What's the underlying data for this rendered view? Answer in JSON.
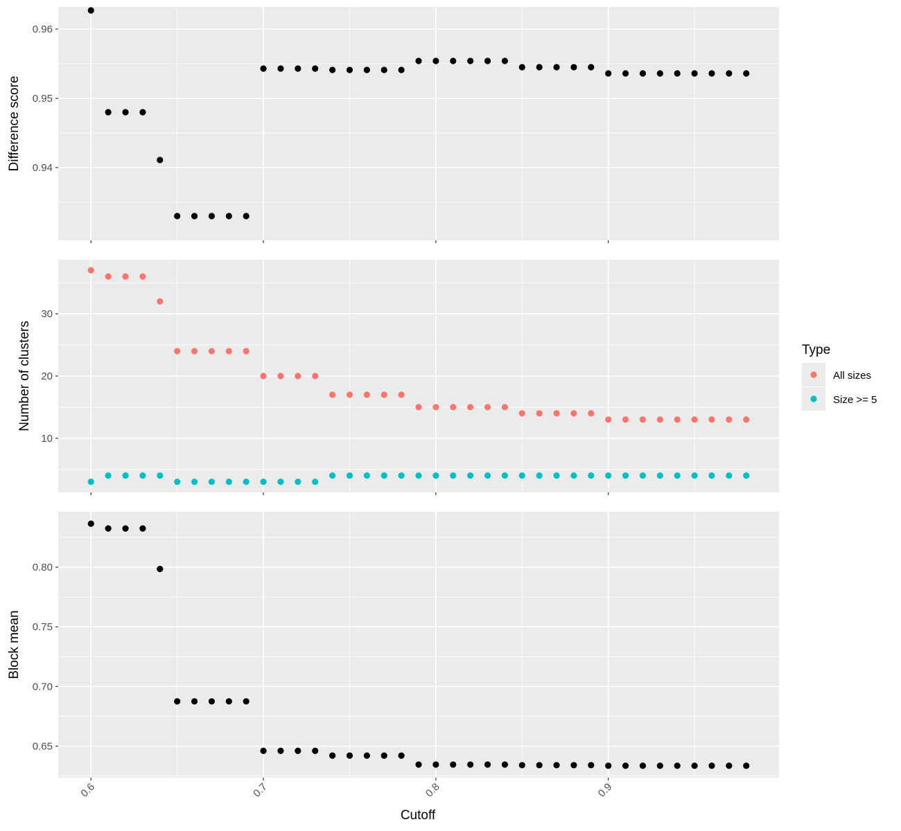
{
  "chart_data": {
    "type": "scatter",
    "x_label": "Cutoff",
    "x_range": [
      0.581,
      0.999
    ],
    "x_ticks": [
      0.6,
      0.7,
      0.8,
      0.9
    ],
    "x_tick_labels": [
      "0.6",
      "0.7",
      "0.8",
      "0.9"
    ],
    "x": [
      0.6,
      0.61,
      0.62,
      0.63,
      0.64,
      0.65,
      0.66,
      0.67,
      0.68,
      0.69,
      0.7,
      0.71,
      0.72,
      0.73,
      0.74,
      0.75,
      0.76,
      0.77,
      0.78,
      0.79,
      0.8,
      0.81,
      0.82,
      0.83,
      0.84,
      0.85,
      0.86,
      0.87,
      0.88,
      0.89,
      0.9,
      0.91,
      0.92,
      0.93,
      0.94,
      0.95,
      0.96,
      0.97,
      0.98
    ],
    "grid": true,
    "legend": {
      "title": "Type",
      "position": "right",
      "entries": [
        {
          "label": "All sizes",
          "color": "#F8766D"
        },
        {
          "label": "Size >= 5",
          "color": "#00BFC4"
        }
      ]
    },
    "panels": [
      {
        "id": "difference",
        "ylabel": "Difference score",
        "ylim": [
          0.9295,
          0.9632
        ],
        "y_ticks": [
          0.94,
          0.95,
          0.96
        ],
        "y_tick_labels": [
          "0.94",
          "0.95",
          "0.96"
        ],
        "series": [
          {
            "color": "#000000",
            "values": [
              0.9627,
              0.948,
              0.948,
              0.948,
              0.9411,
              0.933,
              0.933,
              0.933,
              0.933,
              0.933,
              0.9543,
              0.9543,
              0.9543,
              0.9543,
              0.9541,
              0.9541,
              0.9541,
              0.9541,
              0.9541,
              0.9554,
              0.9554,
              0.9554,
              0.9554,
              0.9554,
              0.9554,
              0.9545,
              0.9545,
              0.9545,
              0.9545,
              0.9545,
              0.9536,
              0.9536,
              0.9536,
              0.9536,
              0.9536,
              0.9536,
              0.9536,
              0.9536,
              0.9536
            ]
          }
        ]
      },
      {
        "id": "clusters",
        "ylabel": "Number of clusters",
        "ylim": [
          1.3,
          38.7
        ],
        "y_ticks": [
          10,
          20,
          30
        ],
        "y_tick_labels": [
          "10",
          "20",
          "30"
        ],
        "series": [
          {
            "name": "All sizes",
            "color": "#F8766D",
            "values": [
              37,
              36,
              36,
              36,
              32,
              24,
              24,
              24,
              24,
              24,
              20,
              20,
              20,
              20,
              17,
              17,
              17,
              17,
              17,
              15,
              15,
              15,
              15,
              15,
              15,
              14,
              14,
              14,
              14,
              14,
              13,
              13,
              13,
              13,
              13,
              13,
              13,
              13,
              13
            ]
          },
          {
            "name": "Size >= 5",
            "color": "#00BFC4",
            "values": [
              3,
              4,
              4,
              4,
              4,
              3,
              3,
              3,
              3,
              3,
              3,
              3,
              3,
              3,
              4,
              4,
              4,
              4,
              4,
              4,
              4,
              4,
              4,
              4,
              4,
              4,
              4,
              4,
              4,
              4,
              4,
              4,
              4,
              4,
              4,
              4,
              4,
              4,
              4
            ]
          }
        ]
      },
      {
        "id": "block",
        "ylabel": "Block mean",
        "ylim": [
          0.6235,
          0.8465
        ],
        "y_ticks": [
          0.65,
          0.7,
          0.75,
          0.8
        ],
        "y_tick_labels": [
          "0.65",
          "0.70",
          "0.75",
          "0.80"
        ],
        "series": [
          {
            "color": "#000000",
            "values": [
              0.8365,
              0.8325,
              0.8325,
              0.8325,
              0.7985,
              0.6875,
              0.6875,
              0.6875,
              0.6875,
              0.6875,
              0.646,
              0.646,
              0.646,
              0.646,
              0.642,
              0.642,
              0.642,
              0.642,
              0.642,
              0.6345,
              0.6345,
              0.6345,
              0.6345,
              0.6345,
              0.6345,
              0.634,
              0.634,
              0.634,
              0.634,
              0.634,
              0.6335,
              0.6335,
              0.6335,
              0.6335,
              0.6335,
              0.6335,
              0.6335,
              0.6335,
              0.6335
            ]
          }
        ]
      }
    ]
  }
}
